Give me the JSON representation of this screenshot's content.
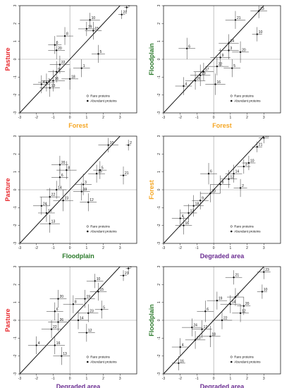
{
  "colors": {
    "Pasture": "#e8252a",
    "Forest": "#f5a623",
    "Floodplain": "#2b7a2b",
    "Degraded area": "#6a2c91"
  },
  "chart_data": [
    {
      "type": "scatter",
      "xlabel": "Forest",
      "ylabel": "Pasture",
      "xlim": [
        -3,
        4
      ],
      "ylim": [
        -3,
        3
      ],
      "xticks": [
        -3,
        -2,
        -1,
        0,
        1,
        2,
        3
      ],
      "yticks": [
        -3,
        -2,
        -1,
        0,
        1,
        2,
        3
      ],
      "legend": {
        "position": "bottom-right",
        "items": [
          "Rare proteins",
          "Abundant proteins"
        ]
      },
      "points": [
        {
          "label": "2",
          "x": 3.4,
          "y": 2.9,
          "xerr": 0.15,
          "yerr": 0.25
        },
        {
          "label": "21",
          "x": 3.1,
          "y": 2.5,
          "xerr": 0.2,
          "yerr": 0.25
        },
        {
          "label": "10",
          "x": 1.2,
          "y": 2.2,
          "xerr": 0.6,
          "yerr": 0.4
        },
        {
          "label": "15",
          "x": 1.4,
          "y": 1.6,
          "xerr": 0.5,
          "yerr": 0.5
        },
        {
          "label": "19",
          "x": 1.0,
          "y": 1.7,
          "xerr": 0.5,
          "yerr": 0.4
        },
        {
          "label": "8",
          "x": -0.3,
          "y": 1.3,
          "xerr": 0.5,
          "yerr": 0.5
        },
        {
          "label": "6",
          "x": -0.9,
          "y": 0.8,
          "xerr": 0.4,
          "yerr": 0.5
        },
        {
          "label": "20",
          "x": -0.8,
          "y": 0.5,
          "xerr": 0.5,
          "yerr": 0.5
        },
        {
          "label": "5",
          "x": 1.7,
          "y": 0.3,
          "xerr": 0.4,
          "yerr": 0.5
        },
        {
          "label": "22",
          "x": -0.6,
          "y": -0.3,
          "xerr": 0.6,
          "yerr": 0.5
        },
        {
          "label": "1",
          "x": 0.7,
          "y": -0.5,
          "xerr": 0.5,
          "yerr": 0.5
        },
        {
          "label": "9",
          "x": -0.8,
          "y": -0.7,
          "xerr": 0.5,
          "yerr": 0.6
        },
        {
          "label": "16",
          "x": -1.0,
          "y": -1.2,
          "xerr": 0.7,
          "yerr": 0.6
        },
        {
          "label": "3",
          "x": -1.4,
          "y": -1.3,
          "xerr": 0.5,
          "yerr": 0.5
        },
        {
          "label": "18",
          "x": 0.0,
          "y": -1.1,
          "xerr": 0.5,
          "yerr": 0.6
        },
        {
          "label": "13",
          "x": -1.2,
          "y": -1.6,
          "xerr": 0.6,
          "yerr": 0.5
        },
        {
          "label": "4",
          "x": -1.7,
          "y": -1.4,
          "xerr": 0.5,
          "yerr": 0.5
        }
      ]
    },
    {
      "type": "scatter",
      "xlabel": "Forest",
      "ylabel": "Floodplain",
      "xlim": [
        -3,
        4
      ],
      "ylim": [
        -3,
        3
      ],
      "xticks": [
        -3,
        -2,
        -1,
        0,
        1,
        2,
        3
      ],
      "yticks": [
        -3,
        -2,
        -1,
        0,
        1,
        2,
        3
      ],
      "legend": {
        "position": "bottom-right",
        "items": [
          "Rare proteins",
          "Abundant proteins"
        ]
      },
      "points": [
        {
          "label": "23",
          "x": 2.7,
          "y": 2.7,
          "xerr": 0.5,
          "yerr": 0.4
        },
        {
          "label": "21",
          "x": 1.3,
          "y": 2.2,
          "xerr": 0.6,
          "yerr": 0.5
        },
        {
          "label": "10",
          "x": 2.6,
          "y": 1.4,
          "xerr": 0.3,
          "yerr": 0.4
        },
        {
          "label": "6",
          "x": -1.6,
          "y": 0.6,
          "xerr": 0.5,
          "yerr": 0.6
        },
        {
          "label": "14",
          "x": 0.9,
          "y": 0.9,
          "xerr": 0.6,
          "yerr": 0.5
        },
        {
          "label": "3",
          "x": 0.9,
          "y": 0.5,
          "xerr": 0.6,
          "yerr": 0.5
        },
        {
          "label": "20",
          "x": 1.6,
          "y": 0.4,
          "xerr": 0.5,
          "yerr": 0.6
        },
        {
          "label": "9",
          "x": 0.4,
          "y": 0.1,
          "xerr": 0.6,
          "yerr": 0.5
        },
        {
          "label": "22",
          "x": 0.2,
          "y": -0.4,
          "xerr": 0.7,
          "yerr": 0.5
        },
        {
          "label": "5",
          "x": 1.1,
          "y": -0.5,
          "xerr": 0.5,
          "yerr": 0.5
        },
        {
          "label": "17",
          "x": -0.6,
          "y": -0.7,
          "xerr": 0.6,
          "yerr": 0.5
        },
        {
          "label": "13",
          "x": -0.8,
          "y": -0.9,
          "xerr": 0.6,
          "yerr": 0.6
        },
        {
          "label": "26",
          "x": -1.1,
          "y": -1.2,
          "xerr": 0.6,
          "yerr": 0.5
        },
        {
          "label": "16",
          "x": 0.1,
          "y": -1.4,
          "xerr": 0.6,
          "yerr": 0.6
        },
        {
          "label": "4",
          "x": -1.8,
          "y": -1.5,
          "xerr": 0.5,
          "yerr": 0.5
        }
      ]
    },
    {
      "type": "scatter",
      "xlabel": "Floodplain",
      "ylabel": "Pasture",
      "xlim": [
        -3,
        4
      ],
      "ylim": [
        -3,
        3
      ],
      "xticks": [
        -3,
        -2,
        -1,
        0,
        1,
        2,
        3
      ],
      "yticks": [
        -3,
        -2,
        -1,
        0,
        1,
        2,
        3
      ],
      "legend": {
        "position": "bottom-right",
        "items": [
          "Rare proteins",
          "Abundant proteins"
        ]
      },
      "points": [
        {
          "label": "2",
          "x": 3.5,
          "y": 2.5,
          "xerr": 0.15,
          "yerr": 0.3
        },
        {
          "label": "10",
          "x": 2.3,
          "y": 2.5,
          "xerr": 0.6,
          "yerr": 0.4
        },
        {
          "label": "21",
          "x": 3.2,
          "y": 0.8,
          "xerr": 0.2,
          "yerr": 0.5
        },
        {
          "label": "20",
          "x": -0.6,
          "y": 1.4,
          "xerr": 0.5,
          "yerr": 0.5
        },
        {
          "label": "8",
          "x": -0.2,
          "y": 1.1,
          "xerr": 0.6,
          "yerr": 0.5
        },
        {
          "label": "6",
          "x": -0.6,
          "y": 0.7,
          "xerr": 0.5,
          "yerr": 0.5
        },
        {
          "label": "5",
          "x": 1.8,
          "y": 1.1,
          "xerr": 0.4,
          "yerr": 0.5
        },
        {
          "label": "15",
          "x": 1.6,
          "y": 0.9,
          "xerr": 0.5,
          "yerr": 0.5
        },
        {
          "label": "3",
          "x": 0.8,
          "y": 0.3,
          "xerr": 0.5,
          "yerr": 0.6
        },
        {
          "label": "19",
          "x": 0.7,
          "y": -0.1,
          "xerr": 0.5,
          "yerr": 0.5
        },
        {
          "label": "14",
          "x": -0.8,
          "y": 0.0,
          "xerr": 0.6,
          "yerr": 0.5
        },
        {
          "label": "22",
          "x": -1.2,
          "y": -0.4,
          "xerr": 0.6,
          "yerr": 0.5
        },
        {
          "label": "12",
          "x": 1.1,
          "y": -0.7,
          "xerr": 0.5,
          "yerr": 0.5
        },
        {
          "label": "23",
          "x": -0.4,
          "y": -0.6,
          "xerr": 0.6,
          "yerr": 0.6
        },
        {
          "label": "24",
          "x": -1.7,
          "y": -0.9,
          "xerr": 0.5,
          "yerr": 0.5
        },
        {
          "label": "16",
          "x": -1.4,
          "y": -1.3,
          "xerr": 0.5,
          "yerr": 0.5
        },
        {
          "label": "13",
          "x": -1.2,
          "y": -1.9,
          "xerr": 0.6,
          "yerr": 0.5
        }
      ]
    },
    {
      "type": "scatter",
      "xlabel": "Degraded area",
      "ylabel": "Forest",
      "xlim": [
        -3,
        4
      ],
      "ylim": [
        -3,
        3
      ],
      "xticks": [
        -3,
        -2,
        -1,
        0,
        1,
        2,
        3
      ],
      "yticks": [
        -3,
        -2,
        -1,
        0,
        1,
        2,
        3
      ],
      "legend": {
        "position": "bottom-right",
        "items": [
          "Rare proteins",
          "Abundant proteins"
        ]
      },
      "points": [
        {
          "label": "23",
          "x": 3.0,
          "y": 2.9,
          "xerr": 0.3,
          "yerr": 0.3
        },
        {
          "label": "21",
          "x": 2.6,
          "y": 2.4,
          "xerr": 0.3,
          "yerr": 0.3
        },
        {
          "label": "10",
          "x": 2.1,
          "y": 1.5,
          "xerr": 0.4,
          "yerr": 0.4
        },
        {
          "label": "3",
          "x": 1.8,
          "y": 1.3,
          "xerr": 0.4,
          "yerr": 0.4
        },
        {
          "label": "14",
          "x": 1.2,
          "y": 0.9,
          "xerr": 0.5,
          "yerr": 0.5
        },
        {
          "label": "12",
          "x": 0.9,
          "y": 0.6,
          "xerr": 0.5,
          "yerr": 0.5
        },
        {
          "label": "8",
          "x": 0.4,
          "y": 0.3,
          "xerr": 0.6,
          "yerr": 0.5
        },
        {
          "label": "6",
          "x": -0.3,
          "y": 0.9,
          "xerr": 0.5,
          "yerr": 0.6
        },
        {
          "label": "2",
          "x": 1.6,
          "y": 0.1,
          "xerr": 0.4,
          "yerr": 0.5
        },
        {
          "label": "20",
          "x": -0.2,
          "y": -0.2,
          "xerr": 0.6,
          "yerr": 0.5
        },
        {
          "label": "9",
          "x": -0.8,
          "y": -0.6,
          "xerr": 0.5,
          "yerr": 0.5
        },
        {
          "label": "18",
          "x": -1.2,
          "y": -0.9,
          "xerr": 0.6,
          "yerr": 0.6
        },
        {
          "label": "13",
          "x": -1.5,
          "y": -1.3,
          "xerr": 0.5,
          "yerr": 0.5
        },
        {
          "label": "4",
          "x": -2.0,
          "y": -1.6,
          "xerr": 0.5,
          "yerr": 0.5
        },
        {
          "label": "16",
          "x": -1.8,
          "y": -2.0,
          "xerr": 0.5,
          "yerr": 0.5
        }
      ]
    },
    {
      "type": "scatter",
      "xlabel": "Degraded area",
      "ylabel": "Pasture",
      "xlim": [
        -3,
        4
      ],
      "ylim": [
        -3,
        3
      ],
      "xticks": [
        -3,
        -2,
        -1,
        0,
        1,
        2,
        3
      ],
      "yticks": [
        -3,
        -2,
        -1,
        0,
        1,
        2,
        3
      ],
      "legend": {
        "position": "bottom-right",
        "items": [
          "Rare proteins",
          "Abundant proteins"
        ]
      },
      "points": [
        {
          "label": "2",
          "x": 3.5,
          "y": 2.9,
          "xerr": 0.15,
          "yerr": 0.3
        },
        {
          "label": "21",
          "x": 3.2,
          "y": 2.5,
          "xerr": 0.2,
          "yerr": 0.3
        },
        {
          "label": "10",
          "x": 1.5,
          "y": 2.2,
          "xerr": 0.5,
          "yerr": 0.4
        },
        {
          "label": "15",
          "x": 1.7,
          "y": 1.6,
          "xerr": 0.5,
          "yerr": 0.5
        },
        {
          "label": "19",
          "x": 0.9,
          "y": 1.2,
          "xerr": 0.6,
          "yerr": 0.5
        },
        {
          "label": "20",
          "x": -0.7,
          "y": 1.2,
          "xerr": 0.5,
          "yerr": 0.5
        },
        {
          "label": "8",
          "x": 0.2,
          "y": 0.9,
          "xerr": 0.6,
          "yerr": 0.5
        },
        {
          "label": "5",
          "x": 1.9,
          "y": 0.6,
          "xerr": 0.4,
          "yerr": 0.5
        },
        {
          "label": "23",
          "x": 1.1,
          "y": 0.4,
          "xerr": 0.6,
          "yerr": 0.5
        },
        {
          "label": "6",
          "x": -0.9,
          "y": 0.5,
          "xerr": 0.5,
          "yerr": 0.5
        },
        {
          "label": "14",
          "x": 0.5,
          "y": 0.0,
          "xerr": 0.6,
          "yerr": 0.5
        },
        {
          "label": "26",
          "x": -0.7,
          "y": -0.1,
          "xerr": 0.6,
          "yerr": 0.5
        },
        {
          "label": "22",
          "x": -1.1,
          "y": -0.5,
          "xerr": 0.6,
          "yerr": 0.5
        },
        {
          "label": "12",
          "x": 1.0,
          "y": -0.7,
          "xerr": 0.5,
          "yerr": 0.5
        },
        {
          "label": "4",
          "x": -2.0,
          "y": -1.4,
          "xerr": 0.5,
          "yerr": 0.5
        },
        {
          "label": "16",
          "x": -0.9,
          "y": -1.4,
          "xerr": 0.6,
          "yerr": 0.5
        },
        {
          "label": "13",
          "x": -0.5,
          "y": -2.0,
          "xerr": 0.5,
          "yerr": 0.5
        }
      ]
    },
    {
      "type": "scatter",
      "xlabel": "Degraded area",
      "ylabel": "Floodplain",
      "xlim": [
        -3,
        4
      ],
      "ylim": [
        -3,
        3
      ],
      "xticks": [
        -3,
        -2,
        -1,
        0,
        1,
        2,
        3
      ],
      "yticks": [
        -3,
        -2,
        -1,
        0,
        1,
        2,
        3
      ],
      "legend": {
        "position": "bottom-right",
        "items": [
          "Rare proteins",
          "Abundant proteins"
        ]
      },
      "points": [
        {
          "label": "23",
          "x": 3.0,
          "y": 2.7,
          "xerr": 0.4,
          "yerr": 0.4
        },
        {
          "label": "21",
          "x": 1.2,
          "y": 2.4,
          "xerr": 0.5,
          "yerr": 0.4
        },
        {
          "label": "10",
          "x": 2.9,
          "y": 1.6,
          "xerr": 0.3,
          "yerr": 0.4
        },
        {
          "label": "3",
          "x": 1.3,
          "y": 1.3,
          "xerr": 0.5,
          "yerr": 0.5
        },
        {
          "label": "19",
          "x": 0.2,
          "y": 1.1,
          "xerr": 0.6,
          "yerr": 0.5
        },
        {
          "label": "14",
          "x": 1.0,
          "y": 0.9,
          "xerr": 0.6,
          "yerr": 0.5
        },
        {
          "label": "20",
          "x": 1.8,
          "y": 0.8,
          "xerr": 0.4,
          "yerr": 0.5
        },
        {
          "label": "12",
          "x": 1.6,
          "y": 0.4,
          "xerr": 0.5,
          "yerr": 0.5
        },
        {
          "label": "6",
          "x": -0.5,
          "y": 0.5,
          "xerr": 0.5,
          "yerr": 0.6
        },
        {
          "label": "22",
          "x": 0.5,
          "y": 0.0,
          "xerr": 0.6,
          "yerr": 0.5
        },
        {
          "label": "24",
          "x": -1.3,
          "y": -0.4,
          "xerr": 0.6,
          "yerr": 0.5
        },
        {
          "label": "17",
          "x": -0.7,
          "y": -0.5,
          "xerr": 0.6,
          "yerr": 0.5
        },
        {
          "label": "18",
          "x": -0.2,
          "y": -0.9,
          "xerr": 0.6,
          "yerr": 0.6
        },
        {
          "label": "13",
          "x": -1.1,
          "y": -1.1,
          "xerr": 0.6,
          "yerr": 0.5
        },
        {
          "label": "4",
          "x": -2.0,
          "y": -1.5,
          "xerr": 0.5,
          "yerr": 0.5
        },
        {
          "label": "16",
          "x": -2.1,
          "y": -2.4,
          "xerr": 0.4,
          "yerr": 0.4
        }
      ]
    }
  ]
}
